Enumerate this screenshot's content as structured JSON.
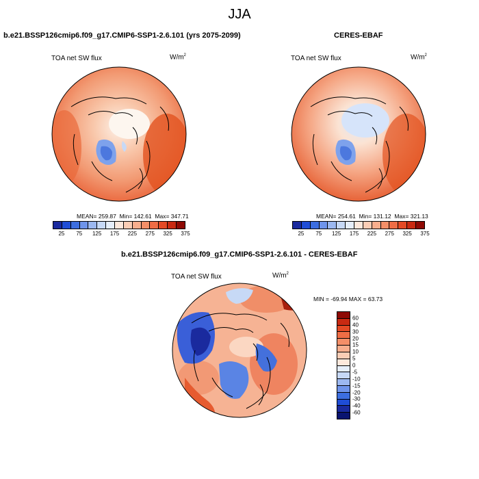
{
  "title": "JJA",
  "panels": [
    {
      "case": "b.e21.BSSP126cmip6.f09_g17.CMIP6-SSP1-2.6.101 (yrs 2075-2099)",
      "variable": "TOA net SW flux",
      "units_base": "W/m",
      "units_exp": "2",
      "mean": "MEAN= 259.87",
      "min": "Min= 142.61",
      "max": "Max= 347.71"
    },
    {
      "case": "CERES-EBAF",
      "variable": "TOA net SW flux",
      "units_base": "W/m",
      "units_exp": "2",
      "mean": "MEAN= 254.61",
      "min": "Min= 131.12",
      "max": "Max= 321.13"
    }
  ],
  "diff_panel": {
    "case": "b.e21.BSSP126cmip6.f09_g17.CMIP6-SSP1-2.6.101 - CERES-EBAF",
    "variable": "TOA net SW flux",
    "units_base": "W/m",
    "units_exp": "2",
    "minmax": "MIN = -69.94  MAX =  63.73"
  },
  "colorbar_abs": {
    "ticks": [
      "25",
      "75",
      "125",
      "175",
      "225",
      "275",
      "325",
      "375"
    ],
    "colors": [
      "#1a2a9e",
      "#1f4dd6",
      "#3c6ee0",
      "#6f94ea",
      "#9cb8f0",
      "#c7d9f6",
      "#e6eefa",
      "#fde8dc",
      "#fbcdb5",
      "#f8ae8d",
      "#f48f68",
      "#ef6d45",
      "#e44a25",
      "#c92a12",
      "#8e0a05"
    ]
  },
  "colorbar_diff": {
    "ticks": [
      "60",
      "40",
      "30",
      "20",
      "15",
      "10",
      "5",
      "0",
      "-5",
      "-10",
      "-15",
      "-20",
      "-30",
      "-40",
      "-60"
    ],
    "colors": [
      "#8e0a05",
      "#c92a12",
      "#e44a25",
      "#ef6d45",
      "#f48f68",
      "#f8ae8d",
      "#fbcdb5",
      "#fde8dc",
      "#e6eefa",
      "#c7d9f6",
      "#9cb8f0",
      "#6f94ea",
      "#3c6ee0",
      "#1f4dd6",
      "#1a2a9e",
      "#0a1470"
    ]
  }
}
